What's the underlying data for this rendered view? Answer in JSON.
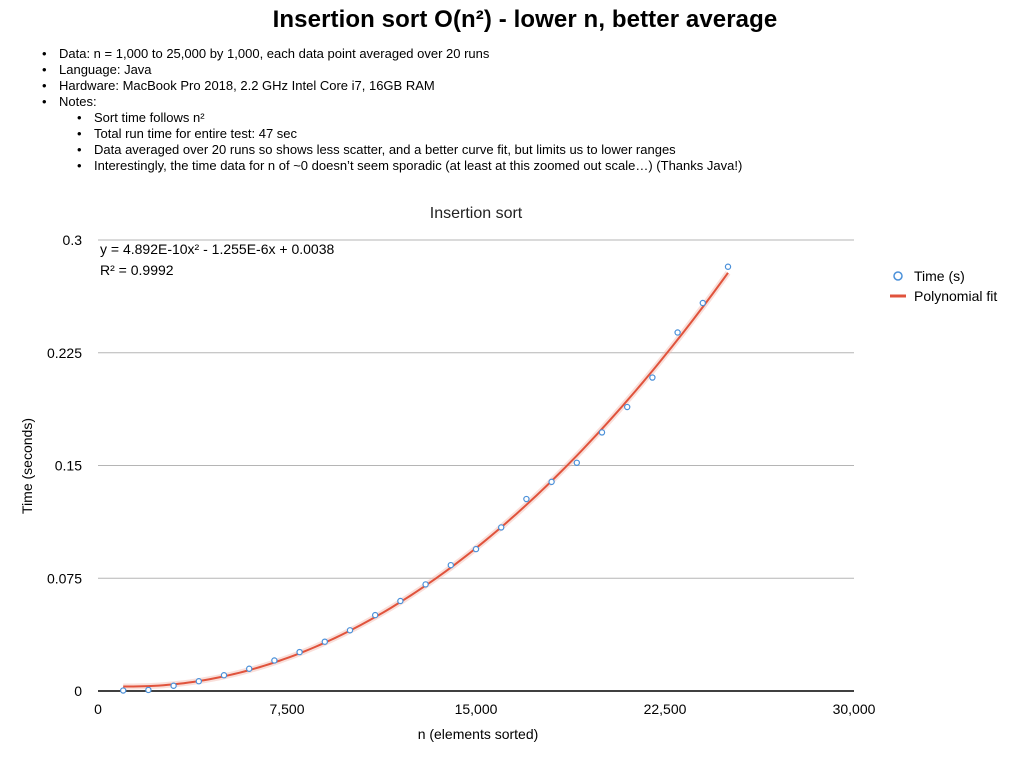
{
  "slide": {
    "title": "Insertion sort O(n²) - lower n, better average",
    "notes": {
      "data": "Data: n = 1,000 to 25,000 by 1,000, each data point averaged over 20 runs",
      "language": "Language: Java",
      "hardware": "Hardware: MacBook Pro 2018, 2.2 GHz Intel Core i7, 16GB RAM",
      "notes_heading": "Notes:",
      "sub": [
        "Sort time follows n²",
        "Total run time for entire test: 47 sec",
        "Data averaged over 20 runs so shows less scatter, and a better curve fit, but limits us to lower ranges",
        "Interestingly, the time data for n of ~0 doesn’t seem sporadic (at least at this zoomed out scale…) (Thanks Java!)"
      ]
    }
  },
  "chart_data": {
    "type": "scatter",
    "title": "Insertion sort",
    "xlabel": "n (elements sorted)",
    "ylabel": "Time (seconds)",
    "xlim": [
      0,
      30000
    ],
    "ylim": [
      0,
      0.3
    ],
    "xticks": [
      0,
      7500,
      15000,
      22500,
      30000
    ],
    "xtick_labels": [
      "0",
      "7,500",
      "15,000",
      "22,500",
      "30,000"
    ],
    "yticks": [
      0,
      0.075,
      0.15,
      0.225,
      0.3
    ],
    "ytick_labels": [
      "0",
      "0.075",
      "0.15",
      "0.225",
      "0.3"
    ],
    "grid": "horizontal",
    "legend_position": "right",
    "series": [
      {
        "name": "Time (s)",
        "marker": "open-circle",
        "color": "#4a90d9",
        "x": [
          1000,
          2000,
          3000,
          4000,
          5000,
          6000,
          7000,
          8000,
          9000,
          10000,
          11000,
          12000,
          13000,
          14000,
          15000,
          16000,
          17000,
          18000,
          19000,
          20000,
          21000,
          22000,
          23000,
          24000,
          25000
        ],
        "y": [
          0.0003,
          0.0007,
          0.0035,
          0.0065,
          0.0105,
          0.0148,
          0.0203,
          0.0259,
          0.0328,
          0.0404,
          0.0505,
          0.0599,
          0.0709,
          0.0837,
          0.0944,
          0.1088,
          0.1277,
          0.1391,
          0.1518,
          0.172,
          0.1889,
          0.2085,
          0.2385,
          0.2581,
          0.2822
        ]
      },
      {
        "name": "Polynomial fit",
        "kind": "line",
        "color": "#e0533c",
        "equation": "y = 4.892E-10x² - 1.255E-6x + 0.0038",
        "r_squared": "R² = 0.9992",
        "coefficients": [
          4.892e-10,
          -1.255e-06,
          0.0038
        ],
        "x_range": [
          1000,
          25000
        ]
      }
    ]
  }
}
